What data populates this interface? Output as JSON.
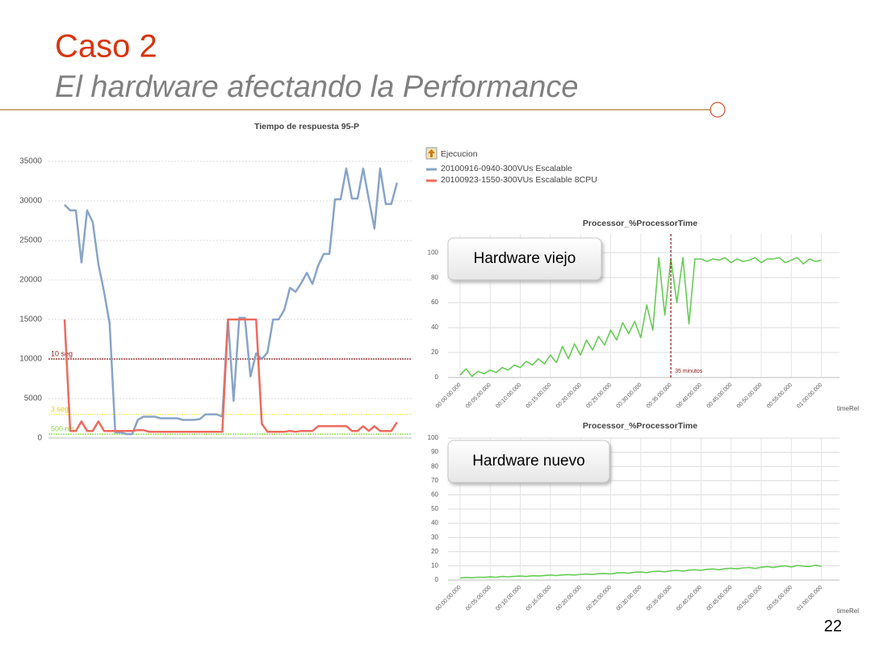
{
  "header": {
    "title": "Caso 2",
    "subtitle": "El hardware afectando la Performance"
  },
  "page_number": "22",
  "chart_data": [
    {
      "type": "line",
      "title": "Tiempo de respuesta 95-P",
      "categories": [
        null,
        null,
        null,
        null,
        null,
        null,
        null,
        null,
        null,
        null,
        null,
        null,
        null,
        null,
        null,
        null,
        null,
        null,
        null,
        null,
        null,
        null,
        null,
        null,
        null,
        null,
        null,
        null,
        null,
        null,
        null,
        null,
        null,
        null,
        null,
        null,
        null,
        null,
        null,
        null,
        null,
        null,
        null,
        null,
        null,
        null,
        null,
        null,
        null,
        null,
        null,
        null,
        null,
        null,
        null,
        null,
        null,
        null,
        null,
        null
      ],
      "ylim": [
        0,
        35000
      ],
      "yticks": [
        0,
        5000,
        10000,
        15000,
        20000,
        25000,
        30000,
        35000
      ],
      "grid": true,
      "legend_title": "Ejecucion",
      "series": [
        {
          "name": "20100916-0940-300VUs Escalable",
          "color": "#88a4c8",
          "values": [
            29500,
            28800,
            28800,
            22200,
            28800,
            27300,
            22000,
            18500,
            14500,
            700,
            700,
            500,
            500,
            2300,
            2700,
            2700,
            2700,
            2500,
            2500,
            2500,
            2500,
            2300,
            2300,
            2300,
            2400,
            3000,
            3000,
            3000,
            2700,
            15000,
            4700,
            15200,
            15200,
            7800,
            10700,
            10000,
            10800,
            15000,
            15000,
            16200,
            19000,
            18500,
            19600,
            20900,
            19500,
            21800,
            23300,
            23300,
            30200,
            30200,
            34100,
            30300,
            30300,
            34100,
            30200,
            26500,
            34100,
            29600,
            29600,
            32300
          ]
        },
        {
          "name": "20100923-1550-300VUs Escalable 8CPU",
          "color": "#ee6a5e",
          "values": [
            15000,
            900,
            900,
            2100,
            900,
            900,
            2100,
            900,
            900,
            900,
            900,
            900,
            900,
            1000,
            1000,
            800,
            800,
            800,
            800,
            800,
            800,
            800,
            800,
            800,
            800,
            800,
            800,
            800,
            800,
            15000,
            15000,
            15000,
            15000,
            15000,
            15000,
            1800,
            800,
            800,
            800,
            800,
            900,
            800,
            900,
            900,
            900,
            1500,
            1500,
            1500,
            1500,
            1500,
            1500,
            900,
            900,
            1500,
            900,
            1500,
            900,
            900,
            900,
            2000
          ]
        }
      ],
      "reference_lines": [
        {
          "value": 10000,
          "label": "10 seg",
          "color": "#8b1a1a"
        },
        {
          "value": 3000,
          "label": "3 seg",
          "color": "#f5f060"
        },
        {
          "value": 500,
          "label": "500 ms",
          "color": "#88dd44"
        }
      ]
    },
    {
      "type": "line",
      "title": "Processor_%ProcessorTime",
      "x_label": "timeRel",
      "callout": "Hardware viejo",
      "x": [
        0,
        1,
        2,
        3,
        4,
        5,
        6,
        7,
        8,
        9,
        10,
        11,
        12,
        13,
        14,
        15,
        16,
        17,
        18,
        19,
        20,
        21,
        22,
        23,
        24,
        25,
        26,
        27,
        28,
        29,
        30,
        31,
        32,
        33,
        34,
        35,
        36,
        37,
        38,
        39,
        40,
        41,
        42,
        43,
        44,
        45,
        46,
        47,
        48,
        49,
        50,
        51,
        52,
        53,
        54,
        55,
        56,
        57,
        58,
        59,
        60
      ],
      "xlim": [
        -2,
        63
      ],
      "xticks": [
        {
          "value": 0,
          "label": "00:00:00.000"
        },
        {
          "value": 5,
          "label": "00:05:00.000"
        },
        {
          "value": 10,
          "label": "00:10:00.000"
        },
        {
          "value": 15,
          "label": "00:15:00.000"
        },
        {
          "value": 20,
          "label": "00:20:00.000"
        },
        {
          "value": 25,
          "label": "00:25:00.000"
        },
        {
          "value": 30,
          "label": "00:30:00.000"
        },
        {
          "value": 35,
          "label": "00:35:00.000"
        },
        {
          "value": 40,
          "label": "00:40:00.000"
        },
        {
          "value": 45,
          "label": "00:45:00.000"
        },
        {
          "value": 50,
          "label": "00:50:00.000"
        },
        {
          "value": 55,
          "label": "00:55:00.000"
        },
        {
          "value": 60,
          "label": "01:00:00.000"
        }
      ],
      "ylim": [
        0,
        115
      ],
      "yticks": [
        0,
        20,
        40,
        60,
        80,
        100
      ],
      "grid": true,
      "series": [
        {
          "color": "#66cc55",
          "values": [
            2,
            7,
            1,
            5,
            3,
            6,
            4,
            8,
            6,
            10,
            8,
            13,
            10,
            15,
            11,
            18,
            12,
            25,
            15,
            27,
            18,
            30,
            22,
            33,
            26,
            38,
            30,
            44,
            35,
            45,
            32,
            58,
            38,
            96,
            50,
            95,
            60,
            96,
            43,
            95,
            95,
            93,
            95,
            94,
            96,
            92,
            95,
            93,
            94,
            96,
            92,
            95,
            95,
            96,
            92,
            94,
            96,
            91,
            95,
            93,
            94
          ]
        }
      ],
      "vertical_marker": {
        "value": 35,
        "label": "35 minutos",
        "color": "#8b1a1a"
      }
    },
    {
      "type": "line",
      "title": "Processor_%ProcessorTime",
      "x_label": "timeRel",
      "callout": "Hardware nuevo",
      "x": [
        0,
        1,
        2,
        3,
        4,
        5,
        6,
        7,
        8,
        9,
        10,
        11,
        12,
        13,
        14,
        15,
        16,
        17,
        18,
        19,
        20,
        21,
        22,
        23,
        24,
        25,
        26,
        27,
        28,
        29,
        30,
        31,
        32,
        33,
        34,
        35,
        36,
        37,
        38,
        39,
        40,
        41,
        42,
        43,
        44,
        45,
        46,
        47,
        48,
        49,
        50,
        51,
        52,
        53,
        54,
        55,
        56,
        57,
        58,
        59,
        60
      ],
      "xlim": [
        -2,
        63
      ],
      "xticks": [
        {
          "value": 0,
          "label": "00:00:00.000"
        },
        {
          "value": 5,
          "label": "00:05:00.000"
        },
        {
          "value": 10,
          "label": "00:10:00.000"
        },
        {
          "value": 15,
          "label": "00:15:00.000"
        },
        {
          "value": 20,
          "label": "00:20:00.000"
        },
        {
          "value": 25,
          "label": "00:25:00.000"
        },
        {
          "value": 30,
          "label": "00:30:00.000"
        },
        {
          "value": 35,
          "label": "00:35:00.000"
        },
        {
          "value": 40,
          "label": "00:40:00.000"
        },
        {
          "value": 45,
          "label": "00:45:00.000"
        },
        {
          "value": 50,
          "label": "00:50:00.000"
        },
        {
          "value": 55,
          "label": "00:55:00.000"
        },
        {
          "value": 60,
          "label": "01:00:00.000"
        }
      ],
      "ylim": [
        0,
        100
      ],
      "yticks": [
        0,
        10,
        20,
        30,
        40,
        50,
        60,
        70,
        80,
        90,
        100
      ],
      "grid": true,
      "series": [
        {
          "color": "#66cc55",
          "values": [
            1.5,
            1.8,
            1.6,
            2.0,
            1.9,
            2.2,
            2.0,
            2.5,
            2.3,
            2.6,
            2.8,
            2.5,
            3.0,
            2.9,
            3.2,
            3.5,
            3.1,
            3.6,
            3.8,
            3.5,
            4.0,
            4.2,
            3.9,
            4.5,
            4.6,
            4.3,
            5.0,
            5.2,
            4.8,
            5.5,
            5.6,
            5.2,
            6.0,
            6.2,
            5.8,
            6.5,
            6.8,
            6.3,
            7.0,
            7.2,
            6.8,
            7.5,
            7.8,
            7.2,
            8.0,
            8.3,
            7.9,
            8.5,
            8.8,
            8.2,
            9.0,
            9.5,
            8.8,
            9.6,
            10.0,
            9.2,
            10.2,
            9.8,
            9.5,
            10.5,
            9.6
          ]
        }
      ]
    }
  ]
}
